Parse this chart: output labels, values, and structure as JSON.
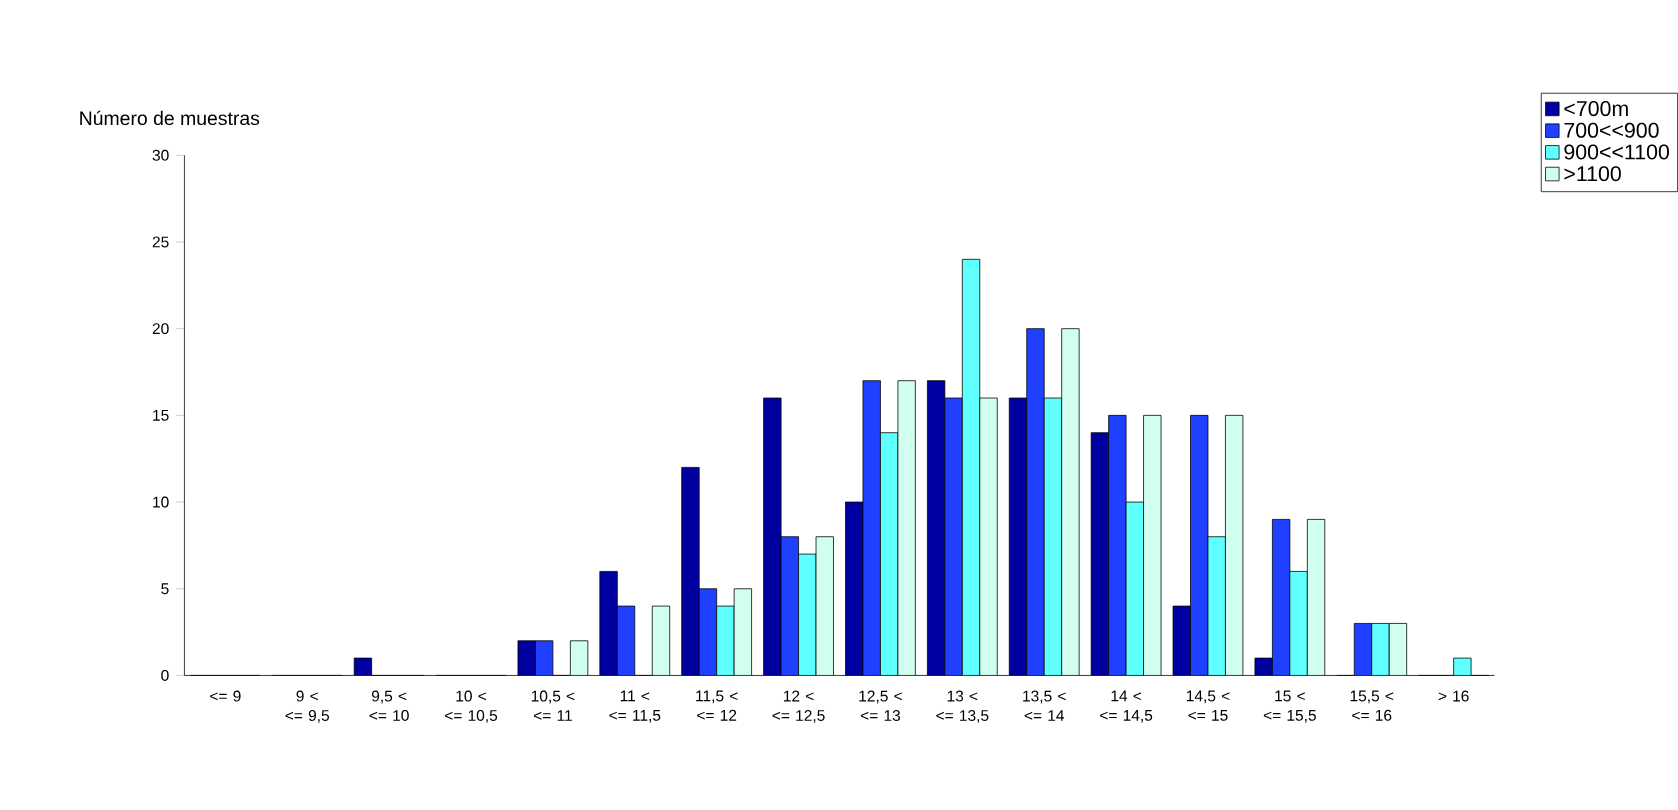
{
  "chart_data": {
    "type": "bar",
    "ylabel": "Número de muestras",
    "categories": [
      "<= 9",
      "9 < <= 9,5",
      "9,5 < <= 10",
      "10 < <= 10,5",
      "10,5 < <= 11",
      "11 < <= 11,5",
      "11,5 < <= 12",
      "12 < <= 12,5",
      "12,5 < <= 13",
      "13 < <= 13,5",
      "13,5 < <= 14",
      "14 < <= 14,5",
      "14,5 < <= 15",
      "15 < <= 15,5",
      "15,5 < <= 16",
      "> 16"
    ],
    "series": [
      {
        "name": "<700m",
        "color": "#0000a0",
        "values": [
          0,
          0,
          1,
          0,
          2,
          6,
          12,
          16,
          10,
          17,
          16,
          14,
          4,
          1,
          0,
          0
        ]
      },
      {
        "name": "700<<900",
        "color": "#2040ff",
        "values": [
          0,
          0,
          0,
          0,
          2,
          4,
          5,
          8,
          17,
          16,
          20,
          15,
          15,
          9,
          3,
          0
        ]
      },
      {
        "name": "900<<1100",
        "color": "#60ffff",
        "values": [
          0,
          0,
          0,
          0,
          0,
          0,
          4,
          7,
          14,
          24,
          16,
          10,
          8,
          6,
          3,
          1
        ]
      },
      {
        "name": ">1100",
        "color": "#d0fff0",
        "values": [
          0,
          0,
          0,
          0,
          2,
          4,
          5,
          8,
          17,
          16,
          20,
          15,
          15,
          9,
          3,
          0
        ]
      }
    ],
    "ylim": [
      0,
      30
    ],
    "yticks": [
      0,
      5,
      10,
      15,
      20,
      25,
      30
    ],
    "grid": false,
    "legend": "top right"
  }
}
